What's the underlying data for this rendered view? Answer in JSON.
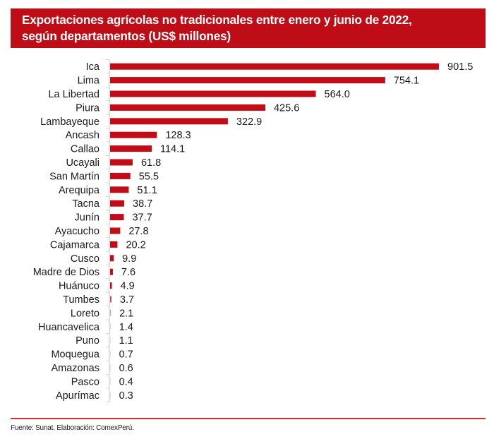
{
  "chart_data": {
    "type": "bar",
    "orientation": "horizontal",
    "title": "Exportaciones agrícolas no tradicionales entre enero y junio de 2022, según departamentos (US$ millones)",
    "title_lines": [
      "Exportaciones agrícolas no tradicionales entre enero y junio de 2022,",
      "según departamentos (US$ millones)"
    ],
    "xlabel": "",
    "ylabel": "",
    "xlim": [
      0,
      901.5
    ],
    "grid": false,
    "legend": "none",
    "bar_color": "#c00d17",
    "categories": [
      "Ica",
      "Lima",
      "La Libertad",
      "Piura",
      "Lambayeque",
      "Ancash",
      "Callao",
      "Ucayali",
      "San Martín",
      "Arequipa",
      "Tacna",
      "Junín",
      "Ayacucho",
      "Cajamarca",
      "Cusco",
      "Madre de Dios",
      "Huánuco",
      "Tumbes",
      "Loreto",
      "Huancavelica",
      "Puno",
      "Moquegua",
      "Amazonas",
      "Pasco",
      "Apurímac"
    ],
    "values": [
      901.5,
      754.1,
      564.0,
      425.6,
      322.9,
      128.3,
      114.1,
      61.8,
      55.5,
      51.1,
      38.7,
      37.7,
      27.8,
      20.2,
      9.9,
      7.6,
      4.9,
      3.7,
      2.1,
      1.4,
      1.1,
      0.7,
      0.6,
      0.4,
      0.3
    ],
    "value_labels": [
      "901.5",
      "754.1",
      "564.0",
      "425.6",
      "322.9",
      "128.3",
      "114.1",
      "61.8",
      "55.5",
      "51.1",
      "38.7",
      "37.7",
      "27.8",
      "20.2",
      "9.9",
      "7.6",
      "4.9",
      "3.7",
      "2.1",
      "1.4",
      "1.1",
      "0.7",
      "0.6",
      "0.4",
      "0.3"
    ]
  },
  "footer": {
    "source": "Fuente: Sunat. Elaboración: ComexPerú."
  },
  "colors": {
    "header_bg": "#bf0d17",
    "bar": "#c00d17",
    "footer_rule": "#d42a33"
  }
}
